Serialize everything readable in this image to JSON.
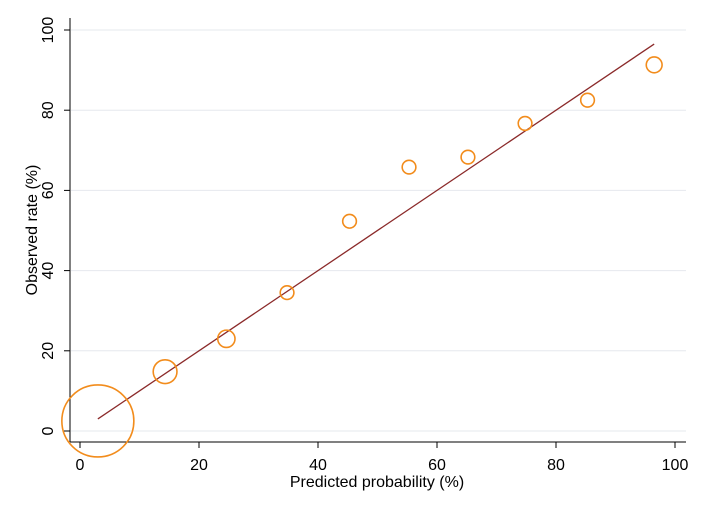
{
  "chart_data": {
    "type": "scatter",
    "xlabel": "Predicted probability (%)",
    "ylabel": "Observed rate (%)",
    "xlim": [
      0,
      100
    ],
    "ylim": [
      0,
      100
    ],
    "x_ticks": [
      0,
      20,
      40,
      60,
      80,
      100
    ],
    "y_ticks": [
      0,
      20,
      40,
      60,
      80,
      100
    ],
    "grid": true,
    "series": [
      {
        "type": "bubble",
        "points": [
          {
            "x": 3,
            "y": 2.5,
            "relative_size": 1.0
          },
          {
            "x": 14.3,
            "y": 14.8,
            "relative_size": 0.33
          },
          {
            "x": 24.6,
            "y": 23,
            "relative_size": 0.24
          },
          {
            "x": 34.8,
            "y": 34.5,
            "relative_size": 0.19
          },
          {
            "x": 45.3,
            "y": 52.3,
            "relative_size": 0.19
          },
          {
            "x": 55.3,
            "y": 65.8,
            "relative_size": 0.19
          },
          {
            "x": 65.2,
            "y": 68.3,
            "relative_size": 0.19
          },
          {
            "x": 74.8,
            "y": 76.7,
            "relative_size": 0.19
          },
          {
            "x": 85.3,
            "y": 82.5,
            "relative_size": 0.19
          },
          {
            "x": 96.5,
            "y": 91.3,
            "relative_size": 0.22
          }
        ]
      },
      {
        "type": "line",
        "points": [
          {
            "x": 3,
            "y": 3
          },
          {
            "x": 96.5,
            "y": 96.5
          }
        ]
      }
    ],
    "colors": {
      "markers": "#f28c1c",
      "line": "#8b2a2a",
      "grid": "#e6e8ee",
      "axis": "#000000"
    }
  }
}
